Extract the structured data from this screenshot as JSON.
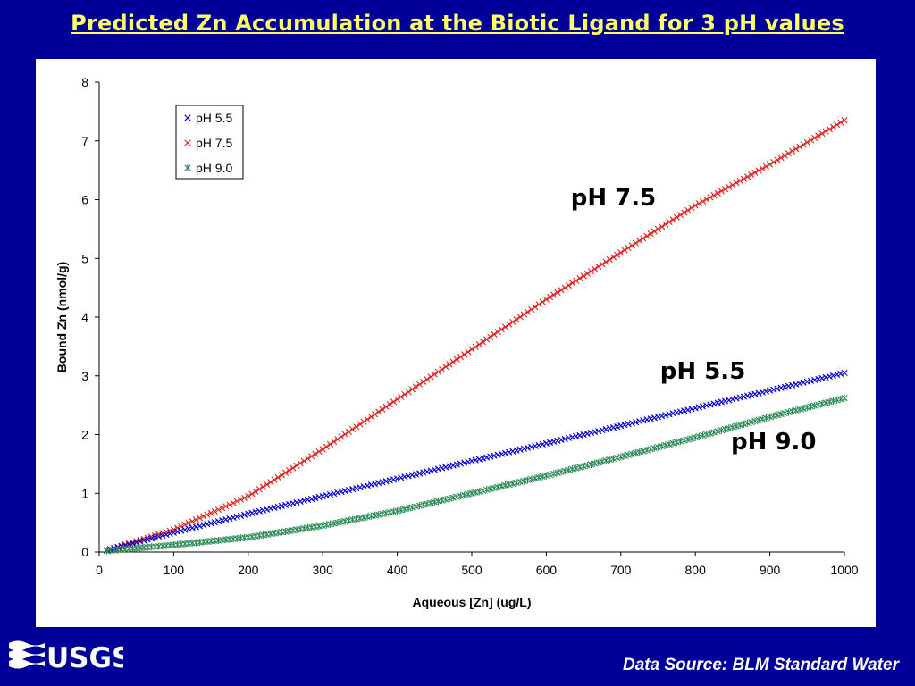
{
  "slide": {
    "title": "Predicted Zn Accumulation at the Biotic Ligand for 3 pH values",
    "footer": "Data Source: BLM Standard Water",
    "logo_text": "USGS"
  },
  "colors": {
    "background": "#000099",
    "title": "#ffff66",
    "ph55": "#0000cc",
    "ph75": "#e02020",
    "ph90": "#2e8b57"
  },
  "chart_data": {
    "type": "scatter",
    "xlabel": "Aqueous [Zn] (ug/L)",
    "ylabel": "Bound Zn (nmol/g)",
    "xlim": [
      0,
      1000
    ],
    "ylim": [
      0,
      8
    ],
    "xticks": [
      0,
      100,
      200,
      300,
      400,
      500,
      600,
      700,
      800,
      900,
      1000
    ],
    "yticks": [
      0,
      1,
      2,
      3,
      4,
      5,
      6,
      7,
      8
    ],
    "grid": false,
    "legend_position": "top-left",
    "series": [
      {
        "name": "pH 5.5",
        "marker": "x",
        "color": "#0000cc",
        "x": [
          10,
          100,
          200,
          300,
          400,
          500,
          600,
          700,
          800,
          900,
          1000
        ],
        "y": [
          0.03,
          0.33,
          0.65,
          0.95,
          1.25,
          1.55,
          1.85,
          2.15,
          2.45,
          2.75,
          3.05
        ]
      },
      {
        "name": "pH 7.5",
        "marker": "x",
        "color": "#e02020",
        "x": [
          10,
          100,
          200,
          300,
          400,
          500,
          600,
          700,
          800,
          900,
          1000
        ],
        "y": [
          0.03,
          0.38,
          0.95,
          1.75,
          2.6,
          3.45,
          4.3,
          5.1,
          5.9,
          6.6,
          7.35
        ]
      },
      {
        "name": "pH 9.0",
        "marker": "asterisk",
        "color": "#2e8b57",
        "x": [
          10,
          100,
          200,
          300,
          400,
          500,
          600,
          700,
          800,
          900,
          1000
        ],
        "y": [
          0.02,
          0.12,
          0.25,
          0.45,
          0.7,
          1.0,
          1.3,
          1.62,
          1.95,
          2.3,
          2.62
        ]
      }
    ],
    "annotations": [
      {
        "text": "pH 7.5",
        "x": 690,
        "y": 5.9
      },
      {
        "text": "pH 5.5",
        "x": 810,
        "y": 2.95
      },
      {
        "text": "pH 9.0",
        "x": 905,
        "y": 1.75
      }
    ]
  }
}
